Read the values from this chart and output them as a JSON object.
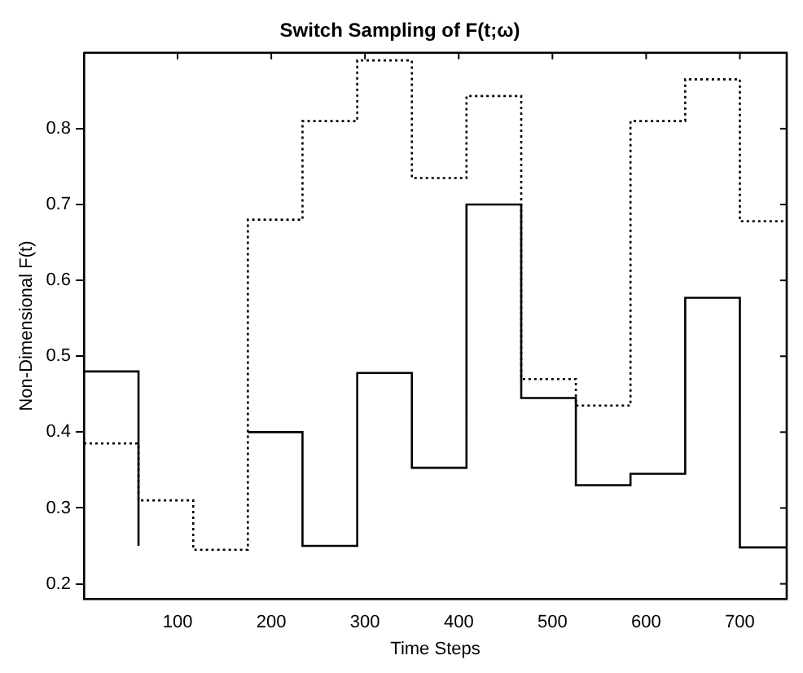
{
  "chart_data": {
    "type": "step",
    "title": "Switch Sampling of F(t;ω)",
    "xlabel": "Time Steps",
    "ylabel": "Non-Dimensional F(t)",
    "xlim": [
      0,
      750
    ],
    "xticks": [
      100,
      200,
      300,
      400,
      500,
      600,
      700
    ],
    "ylim": [
      0.18,
      0.9
    ],
    "yticks": [
      0.2,
      0.3,
      0.4,
      0.5,
      0.6,
      0.7,
      0.8
    ],
    "grid": false,
    "legend": false,
    "x": [
      0,
      58.3,
      116.7,
      175,
      233.3,
      291.7,
      350,
      408.3,
      466.7,
      525,
      583.3,
      641.7,
      700
    ],
    "series": [
      {
        "color": "#000000",
        "line_style": "solid",
        "values": [
          0.48,
          0.25,
          null,
          0.4,
          0.25,
          0.478,
          0.353,
          0.7,
          0.445,
          0.33,
          0.345,
          0.577,
          0.248
        ]
      },
      {
        "color": "#000000",
        "line_style": "dotted",
        "values": [
          0.385,
          0.31,
          0.245,
          0.68,
          0.81,
          0.89,
          0.735,
          0.843,
          0.47,
          0.435,
          0.81,
          0.865,
          0.678
        ]
      }
    ]
  }
}
